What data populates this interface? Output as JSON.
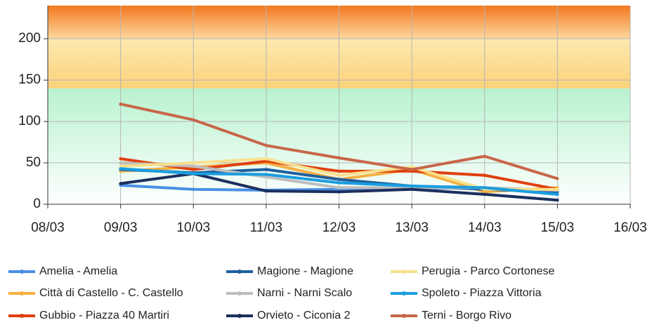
{
  "chart_data": {
    "type": "line",
    "categories": [
      "08/03",
      "09/03",
      "10/03",
      "11/03",
      "12/03",
      "13/03",
      "14/03",
      "15/03",
      "16/03"
    ],
    "ylim": [
      0,
      240
    ],
    "yticks": [
      0,
      50,
      100,
      150,
      200
    ],
    "grid": true,
    "bands": [
      {
        "from": 0,
        "to": 140,
        "colors": [
          "#b8f2cf",
          "#ffffff"
        ]
      },
      {
        "from": 140,
        "to": 200,
        "colors": [
          "#fde9b0",
          "#fbd27a"
        ]
      },
      {
        "from": 200,
        "to": 240,
        "colors": [
          "#f4781e",
          "#fcd8a0"
        ]
      }
    ],
    "series": [
      {
        "name": "Amelia - Amelia",
        "color": "#4a8fe7",
        "values": [
          null,
          23,
          18,
          17,
          18,
          19,
          20,
          12,
          null
        ]
      },
      {
        "name": "Città di Castello - C. Castello",
        "color": "#f5b041",
        "values": [
          null,
          40,
          45,
          50,
          30,
          42,
          15,
          20,
          null
        ]
      },
      {
        "name": "Gubbio - Piazza 40 Martiri",
        "color": "#e0400f",
        "values": [
          null,
          55,
          42,
          52,
          40,
          40,
          35,
          18,
          null
        ]
      },
      {
        "name": "Magione - Magione",
        "color": "#1f5f9f",
        "values": [
          null,
          42,
          38,
          42,
          30,
          22,
          18,
          15,
          null
        ]
      },
      {
        "name": "Narni - Narni Scalo",
        "color": "#bdbdbd",
        "values": [
          null,
          50,
          46,
          33,
          20,
          20,
          20,
          17,
          null
        ]
      },
      {
        "name": "Orvieto - Ciconia 2",
        "color": "#1b2f5e",
        "values": [
          null,
          25,
          37,
          16,
          15,
          18,
          12,
          5,
          null
        ]
      },
      {
        "name": "Perugia - Parco Cortonese",
        "color": "#f8e08c",
        "values": [
          null,
          46,
          50,
          55,
          35,
          45,
          18,
          18,
          null
        ]
      },
      {
        "name": "Spoleto - Piazza Vittoria",
        "color": "#1a9ee0",
        "values": [
          null,
          43,
          37,
          36,
          26,
          22,
          20,
          12,
          null
        ]
      },
      {
        "name": "Terni - Borgo Rivo",
        "color": "#c8664a",
        "values": [
          null,
          121,
          102,
          71,
          56,
          42,
          58,
          31,
          null
        ]
      }
    ]
  }
}
